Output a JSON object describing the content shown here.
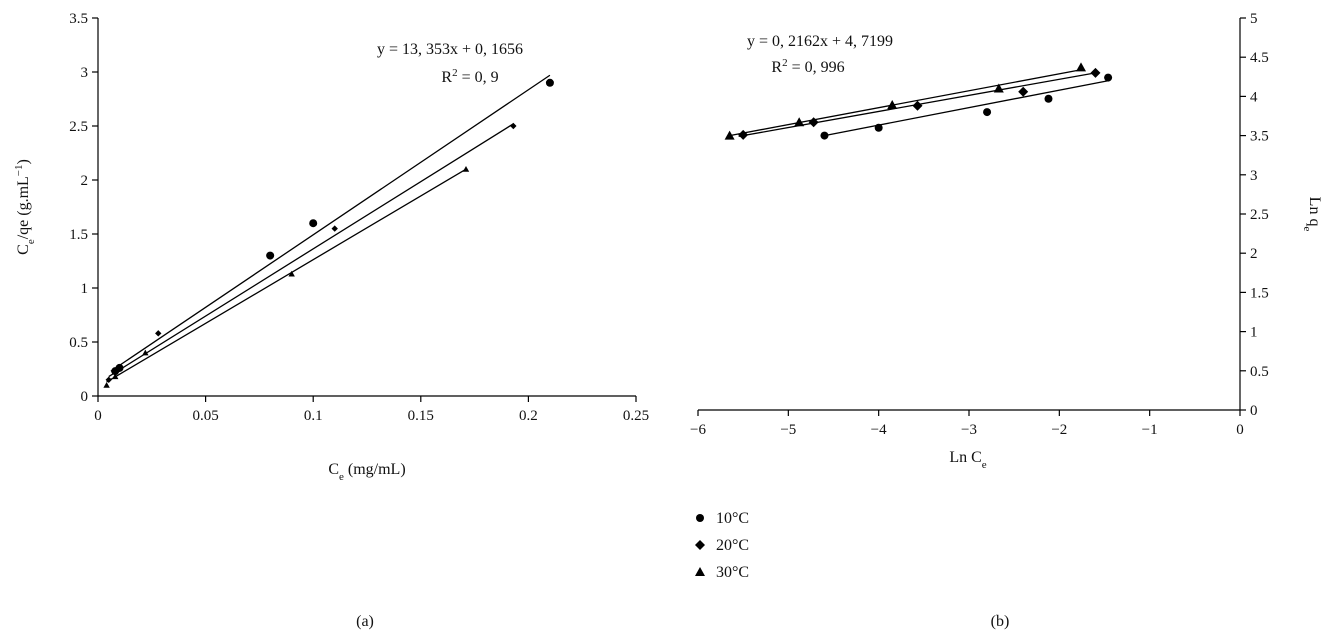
{
  "panel_labels": {
    "a": "(a)",
    "b": "(b)"
  },
  "legend": [
    {
      "marker": "circle",
      "label": "10°C"
    },
    {
      "marker": "diamond",
      "label": "20°C"
    },
    {
      "marker": "triangle",
      "label": "30°C"
    }
  ],
  "chart_data": [
    {
      "id": "a",
      "type": "scatter",
      "xlabel": {
        "main": "C",
        "sub": "e",
        "rest": " (mg/mL)"
      },
      "ylabel": {
        "main": "C",
        "sub": "e",
        "mid": "/qe (g.mL",
        "sup": "−1",
        "end": ")"
      },
      "xlim": [
        0,
        0.25
      ],
      "ylim": [
        0,
        3.5
      ],
      "xticks": [
        "0",
        "0.05",
        "0.1",
        "0.15",
        "0.2",
        "0.25"
      ],
      "yticks": [
        "0",
        "0.5",
        "1",
        "1.5",
        "2",
        "2.5",
        "3",
        "3.5"
      ],
      "equation": {
        "line1": "y = 13, 353x + 0, 1656",
        "r2_prefix": "R",
        "r2_sup": "2",
        "r2_rest": " = 0, 9"
      },
      "series": [
        {
          "marker": "circle",
          "points": [
            [
              0.008,
              0.23
            ],
            [
              0.01,
              0.26
            ],
            [
              0.08,
              1.3
            ],
            [
              0.1,
              1.6
            ],
            [
              0.21,
              2.9
            ]
          ],
          "fit": [
            [
              0.006,
              0.23
            ],
            [
              0.21,
              2.97
            ]
          ]
        },
        {
          "marker": "diamond",
          "points": [
            [
              0.005,
              0.15
            ],
            [
              0.008,
              0.22
            ],
            [
              0.01,
              0.25
            ],
            [
              0.028,
              0.58
            ],
            [
              0.11,
              1.55
            ],
            [
              0.193,
              2.5
            ]
          ],
          "fit": [
            [
              0.005,
              0.18
            ],
            [
              0.193,
              2.52
            ]
          ]
        },
        {
          "marker": "triangle",
          "points": [
            [
              0.004,
              0.1
            ],
            [
              0.008,
              0.18
            ],
            [
              0.022,
              0.4
            ],
            [
              0.09,
              1.13
            ],
            [
              0.171,
              2.1
            ]
          ],
          "fit": [
            [
              0.004,
              0.13
            ],
            [
              0.171,
              2.1
            ]
          ]
        }
      ]
    },
    {
      "id": "b",
      "type": "scatter",
      "xlabel": {
        "main": "Ln C",
        "sub": "e",
        "rest": ""
      },
      "ylabel": {
        "main": "Ln q",
        "sub": "e"
      },
      "xlim": [
        -6,
        0
      ],
      "ylim": [
        0,
        5
      ],
      "xticks": [
        "−6",
        "−5",
        "−4",
        "−3",
        "−2",
        "−1",
        "0"
      ],
      "yticks": [
        "0",
        "0.5",
        "1",
        "1.5",
        "2",
        "2.5",
        "3",
        "3.5",
        "4",
        "4.5",
        "5"
      ],
      "equation": {
        "line1": "y = 0, 2162x + 4, 7199",
        "r2_prefix": "R",
        "r2_sup": "2",
        "r2_rest": " = 0, 996"
      },
      "series": [
        {
          "marker": "circle",
          "points": [
            [
              -4.6,
              3.5
            ],
            [
              -4.0,
              3.6
            ],
            [
              -2.8,
              3.8
            ],
            [
              -2.12,
              3.97
            ],
            [
              -1.46,
              4.24
            ]
          ],
          "fit": [
            [
              -4.6,
              3.5
            ],
            [
              -1.46,
              4.2
            ]
          ]
        },
        {
          "marker": "diamond",
          "points": [
            [
              -5.5,
              3.51
            ],
            [
              -4.72,
              3.67
            ],
            [
              -3.57,
              3.88
            ],
            [
              -2.4,
              4.06
            ],
            [
              -1.6,
              4.3
            ]
          ],
          "fit": [
            [
              -5.55,
              3.49
            ],
            [
              -1.6,
              4.3
            ]
          ]
        },
        {
          "marker": "triangle",
          "points": [
            [
              -5.65,
              3.5
            ],
            [
              -4.88,
              3.67
            ],
            [
              -3.85,
              3.89
            ],
            [
              -2.67,
              4.1
            ],
            [
              -1.76,
              4.37
            ]
          ],
          "fit": [
            [
              -5.65,
              3.5
            ],
            [
              -1.76,
              4.34
            ]
          ]
        }
      ]
    }
  ]
}
